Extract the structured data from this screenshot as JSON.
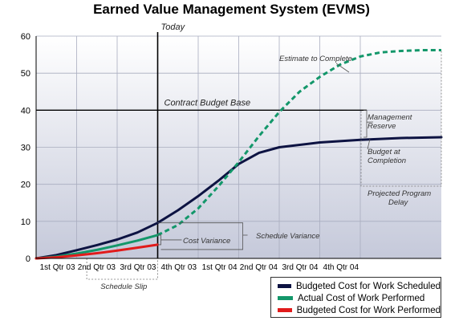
{
  "colors": {
    "bcws": "#0d1342",
    "acwp": "#13976a",
    "bcwp": "#e11b1b",
    "plot_top": "#ffffff",
    "plot_bottom": "#c5c9da"
  },
  "chart_data": {
    "type": "line",
    "title": "Earned Value Management System (EVMS)",
    "xlabel": "",
    "ylabel": "",
    "xlim": [
      0,
      10
    ],
    "ylim": [
      0,
      60
    ],
    "yticks": [
      0,
      10,
      20,
      30,
      40,
      50,
      60
    ],
    "grid": true,
    "legend_position": "bottom-right",
    "x_categories": [
      {
        "label": "1st Qtr 03",
        "x": 1
      },
      {
        "label": "2nd Qtr 03",
        "x": 2
      },
      {
        "label": "3rd Qtr 03",
        "x": 3
      },
      {
        "label": "4th Qtr 03",
        "x": 4
      },
      {
        "label": "1st Qtr 04",
        "x": 5
      },
      {
        "label": "2nd Qtr 04",
        "x": 6
      },
      {
        "label": "3rd Qtr 04",
        "x": 7
      },
      {
        "label": "4th Qtr 04",
        "x": 8
      }
    ],
    "series": [
      {
        "name": "Budgeted Cost for Work Scheduled",
        "key": "bcws",
        "style": "solid",
        "points": [
          [
            0,
            0
          ],
          [
            0.5,
            0.9
          ],
          [
            1,
            2.2
          ],
          [
            1.5,
            3.6
          ],
          [
            2,
            5.1
          ],
          [
            2.5,
            7.0
          ],
          [
            3,
            9.6
          ],
          [
            3.5,
            13.0
          ],
          [
            4,
            16.8
          ],
          [
            4.5,
            21.0
          ],
          [
            5,
            25.5
          ],
          [
            5.5,
            28.5
          ],
          [
            6,
            30.0
          ],
          [
            7,
            31.3
          ],
          [
            8,
            32.0
          ],
          [
            9,
            32.5
          ],
          [
            10,
            32.7
          ]
        ]
      },
      {
        "name": "Actual Cost of Work Performed",
        "key": "acwp",
        "style": "solid",
        "points": [
          [
            0,
            0
          ],
          [
            0.5,
            0.5
          ],
          [
            1,
            1.3
          ],
          [
            1.5,
            2.3
          ],
          [
            2,
            3.5
          ],
          [
            2.5,
            4.8
          ],
          [
            3,
            6.3
          ]
        ]
      },
      {
        "name": "Estimate to Complete",
        "key": "acwp",
        "style": "dashed",
        "points": [
          [
            3,
            6.3
          ],
          [
            3.5,
            9.0
          ],
          [
            4,
            13.5
          ],
          [
            4.5,
            19.5
          ],
          [
            5,
            26.0
          ],
          [
            5.5,
            33.0
          ],
          [
            6,
            39.5
          ],
          [
            6.5,
            45.0
          ],
          [
            7,
            49.0
          ],
          [
            7.5,
            52.3
          ],
          [
            8,
            54.5
          ],
          [
            8.5,
            55.6
          ],
          [
            9,
            56.0
          ],
          [
            9.5,
            56.2
          ],
          [
            10,
            56.2
          ]
        ]
      },
      {
        "name": "Budgeted Cost for Work Performed",
        "key": "bcwp",
        "style": "solid",
        "points": [
          [
            0,
            0
          ],
          [
            0.5,
            0.3
          ],
          [
            1,
            0.8
          ],
          [
            1.5,
            1.4
          ],
          [
            2,
            2.1
          ],
          [
            2.5,
            2.9
          ],
          [
            3,
            3.7
          ]
        ]
      }
    ],
    "today_x": 3,
    "contract_budget_base": 40,
    "budget_at_completion": 32.7,
    "annotations": {
      "today": "Today",
      "contract_budget_base": "Contract Budget Base",
      "estimate_to_complete": "Estimate to Complete",
      "management_reserve": [
        "Management",
        "Reserve"
      ],
      "budget_at_completion": [
        "Budget at",
        "Completion"
      ],
      "projected_program_delay": [
        "Projected Program",
        "Delay"
      ],
      "cost_variance": "Cost Variance",
      "schedule_variance": "Schedule Variance",
      "schedule_slip": "Schedule Slip"
    },
    "legend": [
      {
        "label": "Budgeted Cost for Work Scheduled",
        "key": "bcws"
      },
      {
        "label": "Actual Cost of Work Performed",
        "key": "acwp"
      },
      {
        "label": "Budgeted Cost for Work Performed",
        "key": "bcwp"
      }
    ]
  }
}
